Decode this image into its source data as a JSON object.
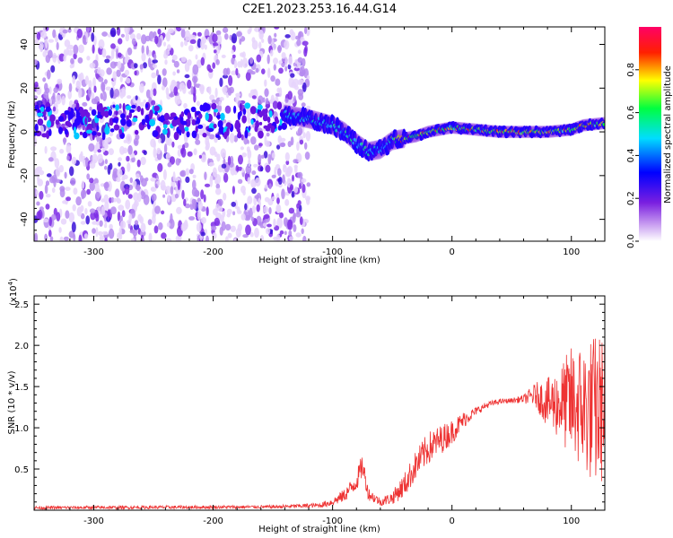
{
  "title": "C2E1.2023.253.16.44.G14",
  "chart_data": [
    {
      "type": "heatmap",
      "xlabel": "Height of straight line (km)",
      "ylabel": "Frequency (Hz)",
      "xlim": [
        -350,
        128
      ],
      "ylim": [
        -50,
        48
      ],
      "x_ticks": [
        -300,
        -200,
        -100,
        0,
        100
      ],
      "y_ticks": [
        -40,
        -20,
        0,
        20,
        40
      ],
      "colorbar": {
        "label": "Normalized spectral amplitude",
        "range": [
          0.0,
          1.0
        ],
        "ticks": [
          0.0,
          0.2,
          0.4,
          0.6,
          0.8
        ],
        "tick_labels": [
          "0.0",
          "0.2",
          "0.4",
          "0.6",
          "0.8"
        ],
        "colors": [
          "#ffffff",
          "#8a2be2",
          "#0000ff",
          "#00ffff",
          "#00ff00",
          "#ffff00",
          "#ff0000",
          "#ff0066"
        ]
      },
      "ridge": {
        "x": [
          -140,
          -120,
          -100,
          -90,
          -80,
          -70,
          -60,
          -50,
          -40,
          -30,
          -20,
          -10,
          0,
          20,
          40,
          60,
          80,
          100,
          110,
          128
        ],
        "frequency": [
          8,
          6,
          3,
          0,
          -5,
          -9,
          -8,
          -4,
          -3,
          -2,
          0,
          1,
          2,
          1,
          0,
          0,
          0,
          1,
          3,
          4
        ]
      },
      "noise_region_x": [
        -350,
        -140
      ]
    },
    {
      "type": "line",
      "xlabel": "Height of straight line (km)",
      "ylabel": "SNR (10 * v/v)",
      "y_multiplier": "(x10",
      "y_multiplier_exp": "4",
      "y_multiplier_close": ")",
      "xlim": [
        -350,
        128
      ],
      "ylim": [
        0,
        2.6
      ],
      "x_ticks": [
        -300,
        -200,
        -100,
        0,
        100
      ],
      "y_ticks": [
        0.5,
        1.0,
        1.5,
        2.0,
        2.5
      ],
      "y_tick_labels": [
        "0.5",
        "1.0",
        "1.5",
        "2.0",
        "2.5"
      ],
      "series": [
        {
          "name": "SNR",
          "color": "#ee3333",
          "envelope_x": [
            -350,
            -150,
            -110,
            -100,
            -90,
            -80,
            -75,
            -70,
            -60,
            -50,
            -40,
            -30,
            -20,
            -10,
            0,
            10,
            20,
            30,
            40,
            50,
            60,
            70,
            80,
            90,
            100,
            110,
            120,
            128
          ],
          "envelope_y": [
            0.03,
            0.04,
            0.06,
            0.1,
            0.18,
            0.35,
            0.55,
            0.2,
            0.1,
            0.15,
            0.3,
            0.55,
            0.75,
            0.85,
            0.95,
            1.1,
            1.2,
            1.28,
            1.32,
            1.33,
            1.35,
            1.4,
            1.3,
            1.3,
            1.3,
            1.25,
            1.2,
            1.25
          ],
          "noise_amplitude": [
            0.02,
            0.02,
            0.03,
            0.05,
            0.08,
            0.12,
            0.15,
            0.08,
            0.05,
            0.08,
            0.15,
            0.18,
            0.2,
            0.18,
            0.15,
            0.1,
            0.05,
            0.04,
            0.03,
            0.03,
            0.05,
            0.15,
            0.3,
            0.45,
            0.7,
            0.8,
            0.95,
            0.9
          ]
        }
      ]
    }
  ]
}
